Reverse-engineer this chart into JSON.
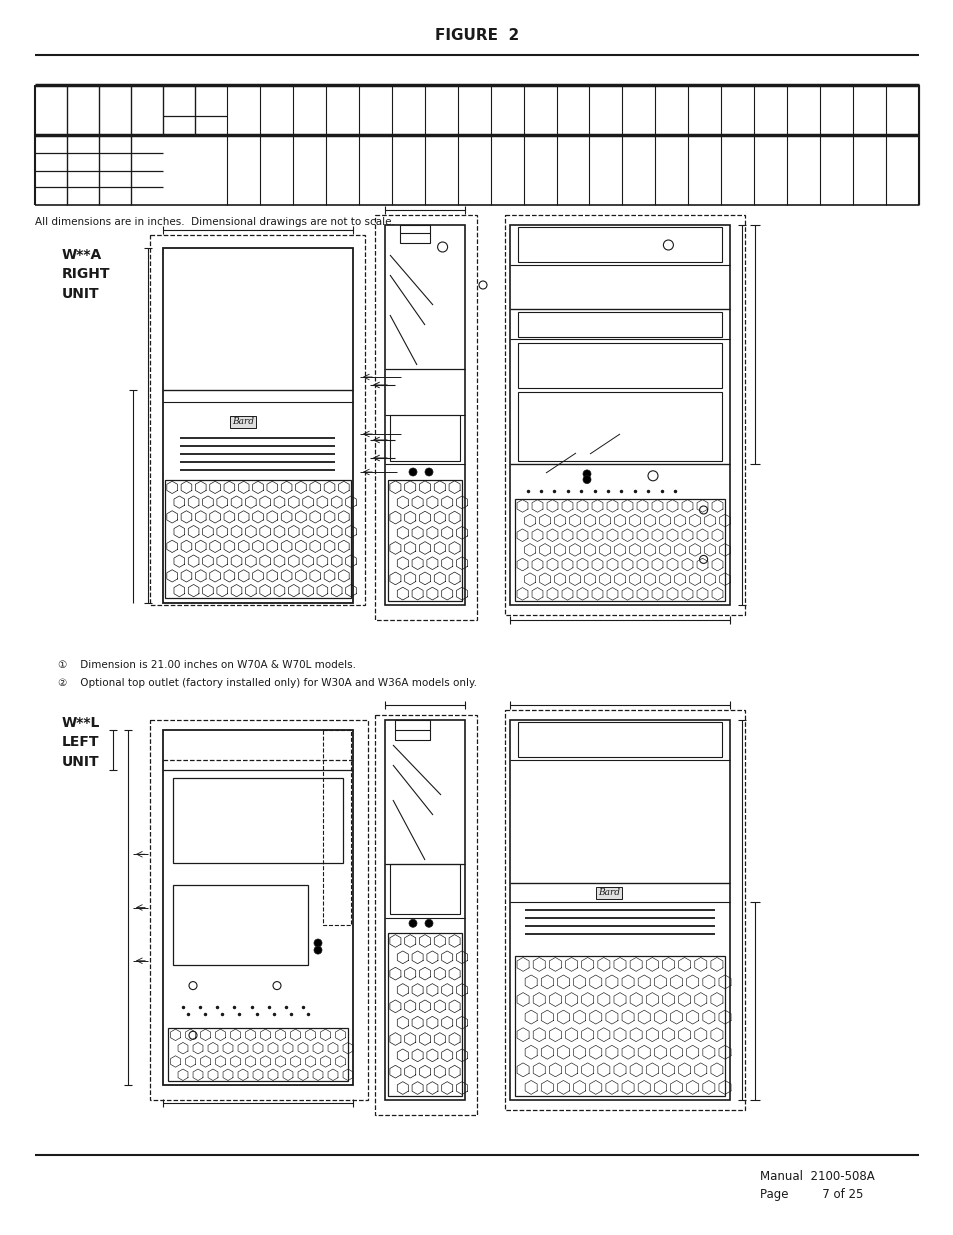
{
  "title": "FIGURE  2",
  "footnote1": "①    Dimension is 21.00 inches on W70A & W70L models.",
  "footnote2": "②    Optional top outlet (factory installed only) for W30A and W36A models only.",
  "caption_top": "All dimensions are in inches.  Dimensional drawings are not to scale.",
  "label_right": "W**A\nRIGHT\nUNIT",
  "label_left": "W**L\nLEFT\nUNIT",
  "footer_manual": "Manual  2100-508A",
  "footer_page": "Page         7 of 25",
  "bg_color": "#ffffff",
  "line_color": "#1a1a1a",
  "text_color": "#1a1a1a"
}
